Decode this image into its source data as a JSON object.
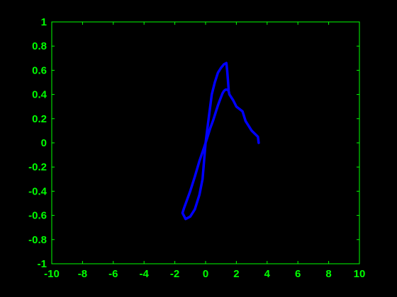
{
  "chart_data": {
    "type": "line",
    "title": "",
    "xlabel": "",
    "ylabel": "",
    "xlim": [
      -10,
      10
    ],
    "ylim": [
      -1,
      1
    ],
    "x_ticks": [
      -10,
      -8,
      -6,
      -4,
      -2,
      0,
      2,
      4,
      6,
      8,
      10
    ],
    "y_ticks": [
      -1,
      -0.8,
      -0.6,
      -0.4,
      -0.2,
      0,
      0.2,
      0.4,
      0.6,
      0.8,
      1
    ],
    "x_tick_labels": [
      "-10",
      "-8",
      "-6",
      "-4",
      "-2",
      "0",
      "2",
      "4",
      "6",
      "8",
      "10"
    ],
    "y_tick_labels": [
      "-1",
      "-0.8",
      "-0.6",
      "-0.4",
      "-0.2",
      "0",
      "0.2",
      "0.4",
      "0.6",
      "0.8",
      "1"
    ],
    "grid": false,
    "colors": {
      "background": "#000000",
      "axes": "#00ff00",
      "series": "#0000ff"
    },
    "series": [
      {
        "x": [
          3.45,
          3.4,
          3.0,
          2.6,
          2.4,
          2.0,
          1.8,
          1.55,
          1.5,
          1.4,
          1.3,
          1.2,
          1.1,
          0.95,
          0.8,
          0.65,
          0.5,
          0.3,
          0.1,
          -0.1,
          -0.4,
          -0.7,
          -1.0,
          -1.4,
          -1.5,
          -1.3,
          -1.0,
          -0.7,
          -0.4,
          -0.2,
          0.0,
          0.2,
          0.4,
          0.6,
          0.8,
          1.0,
          1.2,
          1.35,
          1.4,
          1.45,
          1.5
        ],
        "y": [
          0.0,
          0.05,
          0.1,
          0.18,
          0.26,
          0.3,
          0.35,
          0.4,
          0.43,
          0.44,
          0.44,
          0.43,
          0.41,
          0.36,
          0.31,
          0.25,
          0.19,
          0.12,
          0.04,
          -0.04,
          -0.15,
          -0.28,
          -0.4,
          -0.54,
          -0.58,
          -0.63,
          -0.61,
          -0.55,
          -0.43,
          -0.3,
          0.0,
          0.2,
          0.4,
          0.5,
          0.58,
          0.62,
          0.65,
          0.66,
          0.6,
          0.52,
          0.44
        ]
      }
    ]
  }
}
